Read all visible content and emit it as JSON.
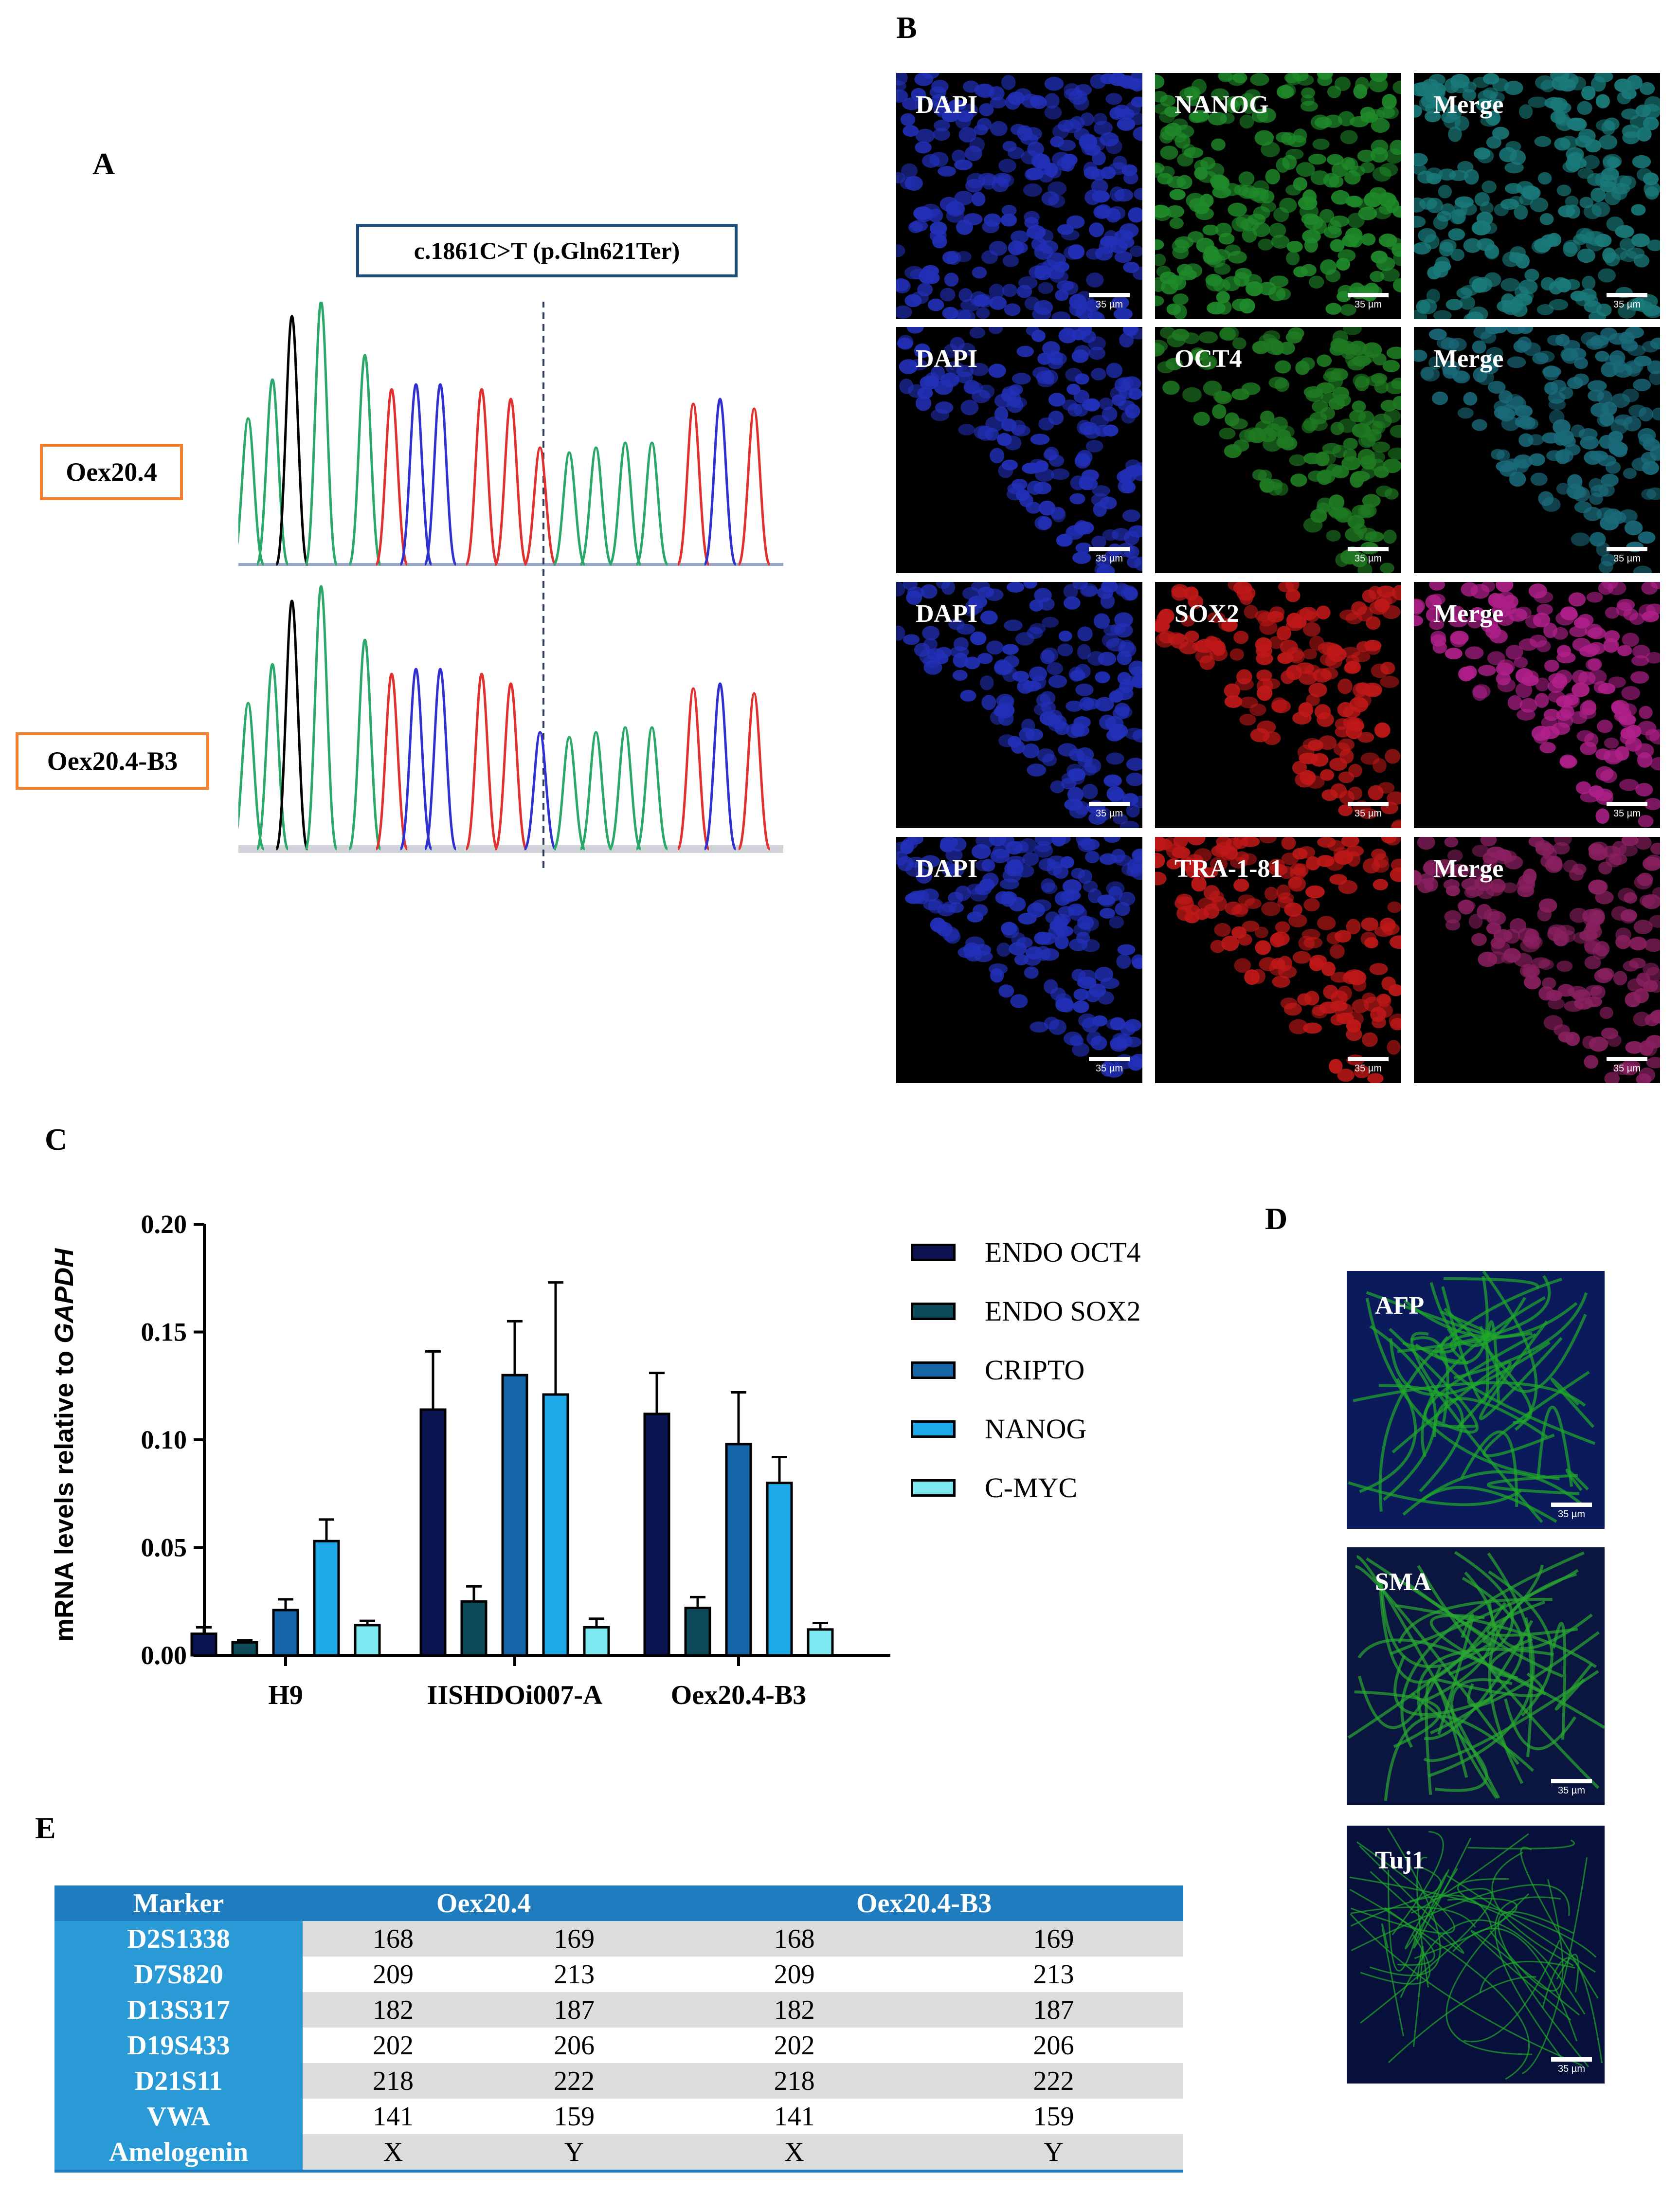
{
  "panels": {
    "a": "A",
    "b": "B",
    "c": "C",
    "d": "D",
    "e": "E"
  },
  "panel_a": {
    "mutation": "c.1861C>T (p.Gln621Ter)",
    "samples": [
      "Oex20.4",
      "Oex20.4-B3"
    ]
  },
  "panel_b": {
    "rows": [
      {
        "dapi": "DAPI",
        "marker": "NANOG",
        "merge": "Merge",
        "marker_color": "#1f8a2a",
        "merge_color": "#1a7a7a"
      },
      {
        "dapi": "DAPI",
        "marker": "OCT4",
        "merge": "Merge",
        "marker_color": "#1f7a22",
        "merge_color": "#1a6a7a"
      },
      {
        "dapi": "DAPI",
        "marker": "SOX2",
        "merge": "Merge",
        "marker_color": "#c01818",
        "merge_color": "#b0208a"
      },
      {
        "dapi": "DAPI",
        "marker": "TRA-1-81",
        "merge": "Merge",
        "marker_color": "#c01818",
        "merge_color": "#8a2060"
      }
    ],
    "scale_bar": "35 µm"
  },
  "panel_d": {
    "images": [
      {
        "label": "AFP",
        "scale_bar": "35 µm"
      },
      {
        "label": "SMA",
        "scale_bar": "35 µm"
      },
      {
        "label": "Tuj1",
        "scale_bar": "35 µm"
      }
    ]
  },
  "chart_data": {
    "type": "bar",
    "ylabel": "mRNA levels relative to GAPDH",
    "ylabel_plain": "mRNA levels relative to ",
    "ylabel_italic": "GAPDH",
    "ylim": [
      0,
      0.2
    ],
    "yticks": [
      "0.00",
      "0.05",
      "0.10",
      "0.15",
      "0.20"
    ],
    "categories": [
      "H9",
      "IISHDOi007-A",
      "Oex20.4-B3"
    ],
    "series": [
      {
        "name": "ENDO OCT4",
        "color": "#0b1450",
        "values": [
          0.01,
          0.114,
          0.112
        ],
        "errors": [
          0.003,
          0.027,
          0.019
        ]
      },
      {
        "name": "ENDO SOX2",
        "color": "#0d4a5a",
        "values": [
          0.006,
          0.025,
          0.022
        ],
        "errors": [
          0.001,
          0.007,
          0.005
        ]
      },
      {
        "name": "CRIPTO",
        "color": "#1565a8",
        "values": [
          0.021,
          0.13,
          0.098
        ],
        "errors": [
          0.005,
          0.025,
          0.024
        ]
      },
      {
        "name": "NANOG",
        "color": "#1ea8e8",
        "values": [
          0.053,
          0.121,
          0.08
        ],
        "errors": [
          0.01,
          0.052,
          0.012
        ]
      },
      {
        "name": "C-MYC",
        "color": "#7ee8f0",
        "values": [
          0.014,
          0.013,
          0.012
        ],
        "errors": [
          0.002,
          0.004,
          0.003
        ]
      }
    ]
  },
  "panel_e": {
    "header": {
      "marker": "Marker",
      "groups": [
        "Oex20.4",
        "Oex20.4-B3"
      ]
    },
    "rows": [
      {
        "marker": "D2S1338",
        "values": [
          "168",
          "169",
          "168",
          "169"
        ]
      },
      {
        "marker": "D7S820",
        "values": [
          "209",
          "213",
          "209",
          "213"
        ]
      },
      {
        "marker": "D13S317",
        "values": [
          "182",
          "187",
          "182",
          "187"
        ]
      },
      {
        "marker": "D19S433",
        "values": [
          "202",
          "206",
          "202",
          "206"
        ]
      },
      {
        "marker": "D21S11",
        "values": [
          "218",
          "222",
          "218",
          "222"
        ]
      },
      {
        "marker": "VWA",
        "values": [
          "141",
          "159",
          "141",
          "159"
        ]
      },
      {
        "marker": "Amelogenin",
        "values": [
          "X",
          "Y",
          "X",
          "Y"
        ]
      }
    ]
  }
}
